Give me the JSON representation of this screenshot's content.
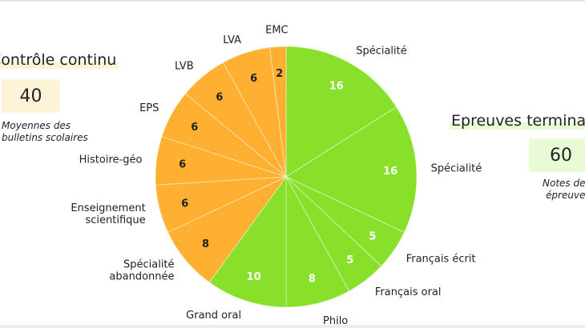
{
  "left_panel": {
    "title": "Contrôle continu",
    "value": "40",
    "note_line1": "Moyennes des",
    "note_line2": "bulletins scolaires"
  },
  "right_panel": {
    "title": "Epreuves terminales",
    "value": "60",
    "note_line1": "Notes des",
    "note_line2": "épreuves"
  },
  "colors": {
    "green": "#88e02a",
    "orange": "#ffb030"
  },
  "chart_data": {
    "type": "pie",
    "title": "",
    "slices": [
      {
        "label": "Spécialité",
        "value": 16,
        "group": "Epreuves terminales"
      },
      {
        "label": "Spécialité",
        "value": 16,
        "group": "Epreuves terminales"
      },
      {
        "label": "Français écrit",
        "value": 5,
        "group": "Epreuves terminales"
      },
      {
        "label": "Français oral",
        "value": 5,
        "group": "Epreuves terminales"
      },
      {
        "label": "Philo",
        "value": 8,
        "group": "Epreuves terminales"
      },
      {
        "label": "Grand oral",
        "value": 10,
        "group": "Epreuves terminales"
      },
      {
        "label": "Spécialité abandonnée",
        "value": 8,
        "group": "Contrôle continu"
      },
      {
        "label": "Enseignement scientifique",
        "value": 6,
        "group": "Contrôle continu"
      },
      {
        "label": "Histoire-géo",
        "value": 6,
        "group": "Contrôle continu"
      },
      {
        "label": "EPS",
        "value": 6,
        "group": "Contrôle continu"
      },
      {
        "label": "LVB",
        "value": 6,
        "group": "Contrôle continu"
      },
      {
        "label": "LVA",
        "value": 6,
        "group": "Contrôle continu"
      },
      {
        "label": "EMC",
        "value": 2,
        "group": "Contrôle continu"
      }
    ]
  }
}
